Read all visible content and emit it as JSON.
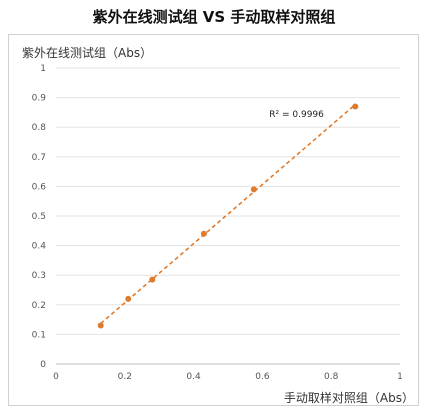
{
  "chart_data": {
    "type": "scatter",
    "title": "紫外在线测试组 VS 手动取样对照组",
    "ylabel": "紫外在线测试组（Abs）",
    "xlabel": "手动取样对照组（Abs）",
    "xlim": [
      0,
      1
    ],
    "ylim": [
      0,
      1
    ],
    "xticks": [
      "0",
      "0.2",
      "0.4",
      "0.6",
      "0.8",
      "1"
    ],
    "yticks": [
      "0",
      "0.1",
      "0.2",
      "0.3",
      "0.4",
      "0.5",
      "0.6",
      "0.7",
      "0.8",
      "0.9",
      "1"
    ],
    "grid": "horizontal",
    "series": [
      {
        "x": [
          0.13,
          0.21,
          0.28,
          0.43,
          0.575,
          0.87
        ],
        "y": [
          0.13,
          0.22,
          0.285,
          0.44,
          0.59,
          0.87
        ],
        "color": "#e07b2c",
        "trendline": true
      }
    ],
    "annotation": "R² = 0.9996"
  }
}
